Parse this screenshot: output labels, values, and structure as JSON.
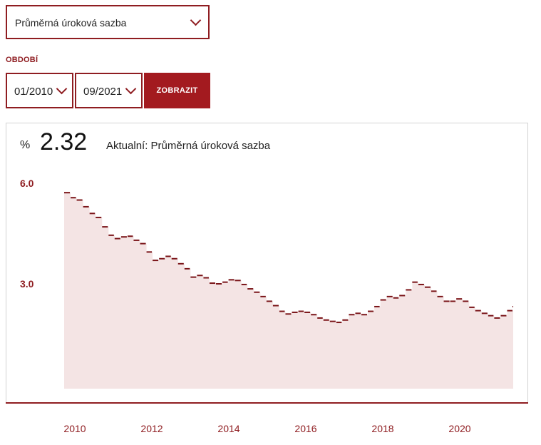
{
  "indicator_select": {
    "value": "Průměrná úroková sazba"
  },
  "period": {
    "label": "OBDOBÍ",
    "from": "01/2010",
    "to": "09/2021",
    "submit_label": "ZOBRAZIT"
  },
  "summary": {
    "unit": "%",
    "value": "2.32",
    "caption": "Aktualní: Průměrná úroková sazba"
  },
  "colors": {
    "accent": "#8f1d21",
    "area_fill": "#f4e4e4",
    "line": "#7a1418"
  },
  "chart_data": {
    "type": "area",
    "title": "",
    "xlabel": "",
    "ylabel": "",
    "ylim": [
      0,
      6.0
    ],
    "yticks": [
      "6.0",
      "3.0"
    ],
    "xticks": [
      "2010",
      "2012",
      "2014",
      "2016",
      "2018",
      "2020"
    ],
    "xlim": [
      2009.67,
      2021.25
    ],
    "series": [
      {
        "points": [
          [
            2009.75,
            5.72
          ],
          [
            2009.92,
            5.57
          ],
          [
            2010.08,
            5.5
          ],
          [
            2010.25,
            5.3
          ],
          [
            2010.42,
            5.1
          ],
          [
            2010.58,
            4.98
          ],
          [
            2010.75,
            4.7
          ],
          [
            2010.92,
            4.45
          ],
          [
            2011.08,
            4.35
          ],
          [
            2011.25,
            4.4
          ],
          [
            2011.42,
            4.42
          ],
          [
            2011.58,
            4.3
          ],
          [
            2011.75,
            4.2
          ],
          [
            2011.92,
            3.95
          ],
          [
            2012.08,
            3.7
          ],
          [
            2012.25,
            3.75
          ],
          [
            2012.42,
            3.82
          ],
          [
            2012.58,
            3.75
          ],
          [
            2012.75,
            3.6
          ],
          [
            2012.92,
            3.45
          ],
          [
            2013.08,
            3.2
          ],
          [
            2013.25,
            3.25
          ],
          [
            2013.42,
            3.18
          ],
          [
            2013.58,
            3.02
          ],
          [
            2013.75,
            3.0
          ],
          [
            2013.92,
            3.05
          ],
          [
            2014.08,
            3.12
          ],
          [
            2014.25,
            3.1
          ],
          [
            2014.42,
            2.98
          ],
          [
            2014.58,
            2.85
          ],
          [
            2014.75,
            2.75
          ],
          [
            2014.92,
            2.62
          ],
          [
            2015.08,
            2.48
          ],
          [
            2015.25,
            2.35
          ],
          [
            2015.42,
            2.18
          ],
          [
            2015.58,
            2.1
          ],
          [
            2015.75,
            2.15
          ],
          [
            2015.92,
            2.18
          ],
          [
            2016.08,
            2.15
          ],
          [
            2016.25,
            2.08
          ],
          [
            2016.42,
            1.98
          ],
          [
            2016.58,
            1.92
          ],
          [
            2016.75,
            1.88
          ],
          [
            2016.92,
            1.85
          ],
          [
            2017.08,
            1.92
          ],
          [
            2017.25,
            2.08
          ],
          [
            2017.42,
            2.12
          ],
          [
            2017.58,
            2.08
          ],
          [
            2017.75,
            2.18
          ],
          [
            2017.92,
            2.32
          ],
          [
            2018.08,
            2.52
          ],
          [
            2018.25,
            2.62
          ],
          [
            2018.42,
            2.58
          ],
          [
            2018.58,
            2.65
          ],
          [
            2018.75,
            2.82
          ],
          [
            2018.92,
            3.05
          ],
          [
            2019.08,
            2.98
          ],
          [
            2019.25,
            2.9
          ],
          [
            2019.42,
            2.78
          ],
          [
            2019.58,
            2.62
          ],
          [
            2019.75,
            2.48
          ],
          [
            2019.92,
            2.48
          ],
          [
            2020.08,
            2.55
          ],
          [
            2020.25,
            2.48
          ],
          [
            2020.42,
            2.3
          ],
          [
            2020.58,
            2.2
          ],
          [
            2020.75,
            2.12
          ],
          [
            2020.92,
            2.05
          ],
          [
            2021.08,
            1.98
          ],
          [
            2021.25,
            2.05
          ],
          [
            2021.42,
            2.2
          ],
          [
            2021.58,
            2.32
          ]
        ]
      }
    ]
  }
}
